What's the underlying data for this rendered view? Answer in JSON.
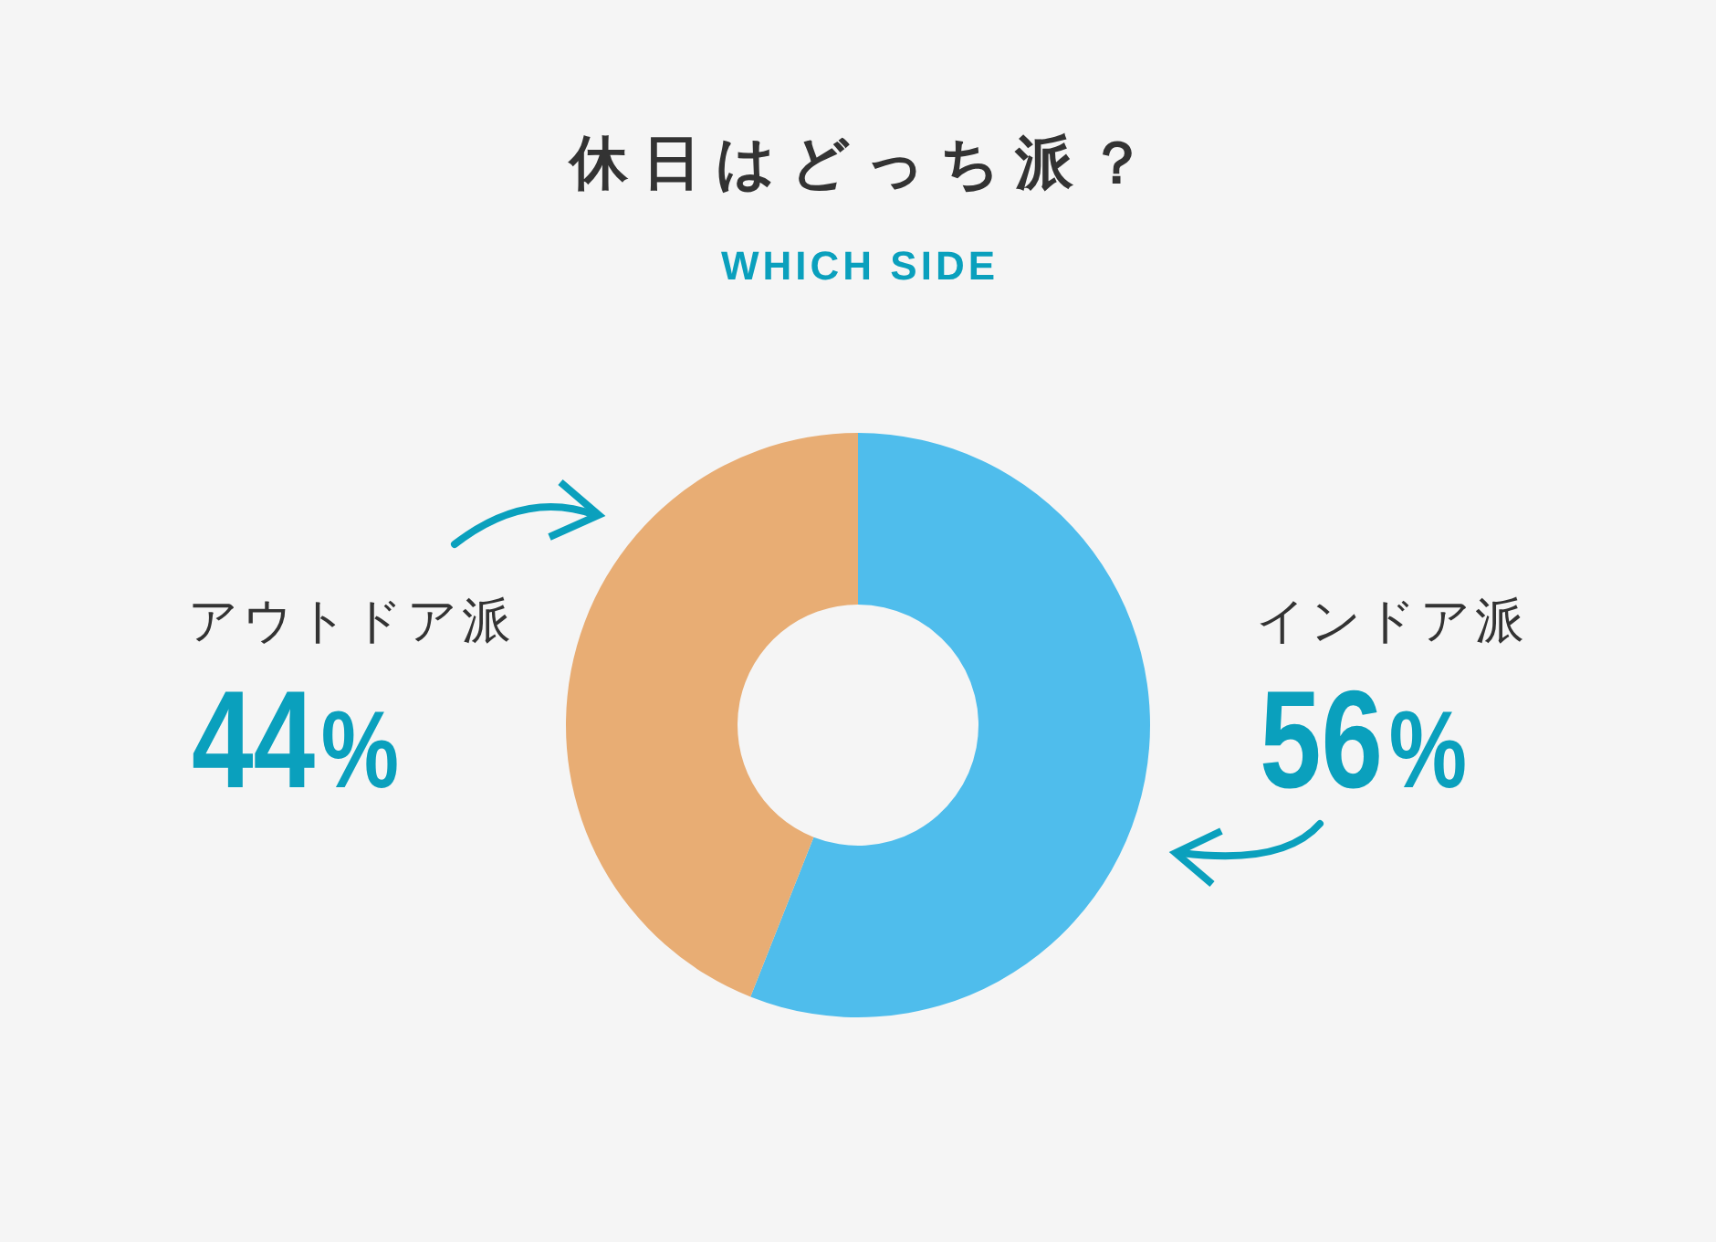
{
  "chart_data": {
    "type": "donut",
    "title": "休日はどっち派？",
    "subtitle": "WHICH SIDE",
    "categories": [
      "インドア派",
      "アウトドア派"
    ],
    "values": [
      56,
      44
    ],
    "colors": [
      "#4fbdec",
      "#e8ad74"
    ],
    "value_labels": [
      "56%",
      "44%"
    ]
  }
}
